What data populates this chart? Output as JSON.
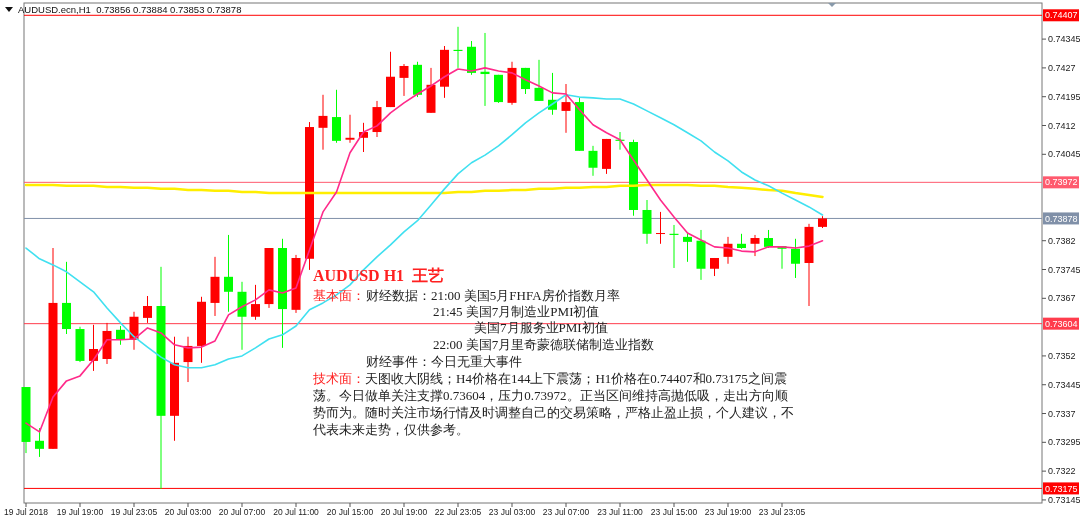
{
  "chart_data": {
    "type": "candlestick",
    "title": "AUDUSD.ecn,H1  0.73856 0.73884 0.73853 0.73878",
    "categories": [
      "19 Jul 2018",
      null,
      null,
      null,
      "19 Jul 19:00",
      null,
      null,
      null,
      "19 Jul 23:05",
      null,
      null,
      null,
      "20 Jul 03:00",
      null,
      null,
      null,
      "20 Jul 07:00",
      null,
      null,
      null,
      "20 Jul 11:00",
      null,
      null,
      null,
      "20 Jul 15:00",
      null,
      null,
      null,
      "20 Jul 19:00",
      null,
      null,
      null,
      "22 Jul 23:05",
      null,
      null,
      null,
      "23 Jul 03:00",
      null,
      null,
      null,
      "23 Jul 07:00",
      null,
      null,
      null,
      "23 Jul 11:00",
      null,
      null,
      null,
      "23 Jul 15:00",
      null,
      null,
      null,
      "23 Jul 19:00",
      null,
      null,
      null,
      "23 Jul 23:05",
      null,
      null,
      null
    ],
    "ohlc": [
      [
        0.73439,
        0.73439,
        0.73267,
        0.73296
      ],
      [
        0.73299,
        0.73332,
        0.73257,
        0.73278
      ],
      [
        0.73278,
        0.73801,
        0.73278,
        0.73658
      ],
      [
        0.73658,
        0.73765,
        0.73577,
        0.7359
      ],
      [
        0.7359,
        0.73596,
        0.73504,
        0.73507
      ],
      [
        0.73507,
        0.73601,
        0.73481,
        0.73538
      ],
      [
        0.73512,
        0.73606,
        0.73499,
        0.73585
      ],
      [
        0.73588,
        0.73598,
        0.73549,
        0.73564
      ],
      [
        0.73562,
        0.73635,
        0.73536,
        0.73622
      ],
      [
        0.73619,
        0.73676,
        0.73606,
        0.7365
      ],
      [
        0.7365,
        0.73752,
        0.73174,
        0.73364
      ],
      [
        0.73364,
        0.7357,
        0.73299,
        0.73502
      ],
      [
        0.73504,
        0.7357,
        0.73452,
        0.73546
      ],
      [
        0.73546,
        0.73674,
        0.73502,
        0.73661
      ],
      [
        0.73658,
        0.73778,
        0.73624,
        0.73726
      ],
      [
        0.73726,
        0.73835,
        0.73635,
        0.73687
      ],
      [
        0.73687,
        0.73713,
        0.73536,
        0.73622
      ],
      [
        0.73622,
        0.73705,
        0.73614,
        0.73655
      ],
      [
        0.73655,
        0.73801,
        0.73645,
        0.73801
      ],
      [
        0.73801,
        0.73825,
        0.73541,
        0.73642
      ],
      [
        0.7364,
        0.73783,
        0.73632,
        0.73775
      ],
      [
        0.73773,
        0.74129,
        0.73744,
        0.74116
      ],
      [
        0.74114,
        0.742,
        0.74057,
        0.74145
      ],
      [
        0.74142,
        0.74213,
        0.74075,
        0.7408
      ],
      [
        0.74083,
        0.74148,
        0.74075,
        0.74088
      ],
      [
        0.74088,
        0.74127,
        0.74051,
        0.74103
      ],
      [
        0.74103,
        0.74184,
        0.7409,
        0.74168
      ],
      [
        0.74168,
        0.74312,
        0.74168,
        0.74247
      ],
      [
        0.74244,
        0.7428,
        0.74197,
        0.74275
      ],
      [
        0.74278,
        0.74286,
        0.74194,
        0.742
      ],
      [
        0.74153,
        0.7427,
        0.74153,
        0.74226
      ],
      [
        0.74221,
        0.74327,
        0.74192,
        0.74317
      ],
      [
        0.74317,
        0.74377,
        0.7427,
        0.74314
      ],
      [
        0.74325,
        0.7434,
        0.74252,
        0.74257
      ],
      [
        0.7426,
        0.74361,
        0.74171,
        0.74254
      ],
      [
        0.74252,
        0.74252,
        0.74179,
        0.74181
      ],
      [
        0.74179,
        0.74286,
        0.74174,
        0.7427
      ],
      [
        0.7427,
        0.7427,
        0.74202,
        0.74215
      ],
      [
        0.74218,
        0.74291,
        0.74184,
        0.74184
      ],
      [
        0.74187,
        0.74257,
        0.74148,
        0.74161
      ],
      [
        0.74158,
        0.74228,
        0.74101,
        0.74181
      ],
      [
        0.74181,
        0.74194,
        0.74054,
        0.74054
      ],
      [
        0.74054,
        0.74067,
        0.73989,
        0.7401
      ],
      [
        0.74007,
        0.74085,
        0.73994,
        0.74085
      ],
      [
        0.74083,
        0.74103,
        0.74057,
        0.7408
      ],
      [
        0.74077,
        0.74083,
        0.73885,
        0.739
      ],
      [
        0.739,
        0.73926,
        0.73812,
        0.73838
      ],
      [
        0.73838,
        0.73895,
        0.73812,
        0.7384
      ],
      [
        0.73838,
        0.73861,
        0.73749,
        0.73835
      ],
      [
        0.7383,
        0.7384,
        0.73765,
        0.73817
      ],
      [
        0.7382,
        0.73848,
        0.73718,
        0.73747
      ],
      [
        0.73747,
        0.73775,
        0.73728,
        0.73775
      ],
      [
        0.73778,
        0.7383,
        0.7376,
        0.73812
      ],
      [
        0.73812,
        0.73838,
        0.73799,
        0.73801
      ],
      [
        0.73812,
        0.73835,
        0.7378,
        0.73827
      ],
      [
        0.73827,
        0.73848,
        0.73801,
        0.73804
      ],
      [
        0.73806,
        0.73806,
        0.73747,
        0.73799
      ],
      [
        0.73799,
        0.73825,
        0.73723,
        0.7376
      ],
      [
        0.73762,
        0.73864,
        0.7365,
        0.73856
      ],
      [
        0.73856,
        0.73884,
        0.73853,
        0.73878
      ]
    ],
    "colors": [
      "#00ff00",
      "#00ff00",
      "#ff0000",
      "#00ff00",
      "#00ff00",
      "#ff0000",
      "#ff0000",
      "#00ff00",
      "#ff0000",
      "#ff0000",
      "#00ff00",
      "#ff0000",
      "#ff0000",
      "#ff0000",
      "#ff0000",
      "#00ff00",
      "#00ff00",
      "#ff0000",
      "#ff0000",
      "#00ff00",
      "#ff0000",
      "#ff0000",
      "#ff0000",
      "#00ff00",
      "#ff0000",
      "#ff0000",
      "#ff0000",
      "#ff0000",
      "#ff0000",
      "#00ff00",
      "#ff0000",
      "#ff0000",
      "#00ff00",
      "#00ff00",
      "#00ff00",
      "#00ff00",
      "#ff0000",
      "#00ff00",
      "#00ff00",
      "#00ff00",
      "#ff0000",
      "#00ff00",
      "#00ff00",
      "#ff0000",
      "#00ff00",
      "#00ff00",
      "#00ff00",
      "#ff0000",
      "#00ff00",
      "#00ff00",
      "#00ff00",
      "#ff0000",
      "#ff0000",
      "#00ff00",
      "#ff0000",
      "#00ff00",
      "#00ff00",
      "#00ff00",
      "#ff0000",
      "#ff0000"
    ],
    "series": [
      {
        "type": "line",
        "color": "#ffee00",
        "values": [
          0.73965,
          0.73965,
          0.73965,
          0.73963,
          0.73963,
          0.73963,
          0.7396,
          0.7396,
          0.73958,
          0.73958,
          0.73955,
          0.73955,
          0.73952,
          0.73952,
          0.7395,
          0.7395,
          0.73947,
          0.73947,
          0.73944,
          0.73944,
          0.73944,
          0.73944,
          0.73944,
          0.73944,
          0.73944,
          0.73944,
          0.73944,
          0.73944,
          0.73944,
          0.73944,
          0.73944,
          0.73944,
          0.73947,
          0.73947,
          0.7395,
          0.7395,
          0.73952,
          0.73952,
          0.73955,
          0.73955,
          0.73958,
          0.73958,
          0.7396,
          0.7396,
          0.73963,
          0.73963,
          0.73965,
          0.73965,
          0.73965,
          0.73965,
          0.73963,
          0.73963,
          0.7396,
          0.73958,
          0.73955,
          0.73952,
          0.7395,
          0.73944,
          0.73939,
          0.73934
        ]
      },
      {
        "type": "line",
        "color": "#40e0f0",
        "values": [
          0.73801,
          0.73773,
          0.73757,
          0.73739,
          0.73713,
          0.73687,
          0.73645,
          0.73606,
          0.7357,
          0.73543,
          0.73517,
          0.73497,
          0.73489,
          0.73489,
          0.73497,
          0.73512,
          0.7352,
          0.73541,
          0.73564,
          0.73575,
          0.73598,
          0.7364,
          0.73658,
          0.73679,
          0.73705,
          0.73744,
          0.73778,
          0.73809,
          0.73843,
          0.73872,
          0.73913,
          0.73955,
          0.73994,
          0.74023,
          0.74043,
          0.74067,
          0.74096,
          0.74127,
          0.74153,
          0.74176,
          0.742,
          0.74194,
          0.74192,
          0.74189,
          0.74189,
          0.74176,
          0.74158,
          0.7414,
          0.74122,
          0.74101,
          0.7408,
          0.74051,
          0.74028,
          0.73999,
          0.73978,
          0.73963,
          0.73944,
          0.73926,
          0.73908,
          0.73887
        ]
      },
      {
        "type": "line",
        "color": "#ff2a8a",
        "values": [
          0.73345,
          0.73322,
          0.73413,
          0.73455,
          0.73468,
          0.7351,
          0.73562,
          0.73562,
          0.73564,
          0.73593,
          0.7358,
          0.73549,
          0.73541,
          0.73543,
          0.73559,
          0.73627,
          0.73648,
          0.73666,
          0.73692,
          0.73684,
          0.73697,
          0.73796,
          0.73895,
          0.73947,
          0.74049,
          0.74103,
          0.74119,
          0.74153,
          0.74179,
          0.74202,
          0.74223,
          0.74247,
          0.74267,
          0.74262,
          0.7427,
          0.74262,
          0.74257,
          0.74239,
          0.74223,
          0.74205,
          0.74202,
          0.74161,
          0.74122,
          0.74101,
          0.74083,
          0.7403,
          0.73978,
          0.73926,
          0.73882,
          0.7384,
          0.73822,
          0.73804,
          0.73801,
          0.73793,
          0.73791,
          0.73804,
          0.73804,
          0.73801,
          0.73806,
          0.7382
        ]
      }
    ],
    "ylim": [
      0.73137,
      0.74439
    ],
    "yticks": [
      0.74345,
      0.7427,
      0.74195,
      0.7412,
      0.74045,
      0.7382,
      0.73745,
      0.7367,
      0.7352,
      0.73445,
      0.7337,
      0.73295,
      0.7322,
      0.73145
    ],
    "ref_lines": [
      {
        "axis": "y",
        "value": 0.74407,
        "label": "0.74407",
        "color": "#ff0000"
      },
      {
        "axis": "y",
        "value": 0.73972,
        "label": "0.73972",
        "color": "#ff5a6e"
      },
      {
        "axis": "y",
        "value": 0.73878,
        "label": "0.73878",
        "color": "#8090a8"
      },
      {
        "axis": "y",
        "value": 0.73604,
        "label": "0.73604",
        "color": "#ff3c4c"
      },
      {
        "axis": "y",
        "value": 0.73175,
        "label": "0.73175",
        "color": "#ff0000"
      }
    ],
    "annotations": [
      "AUDUSD H1  王艺",
      "基本面：",
      "财经数据：21:00 美国5月FHFA房价指数月率",
      "21:45 美国7月制造业PMI初值",
      "美国7月服务业PMI初值",
      "22:00 美国7月里奇蒙德联储制造业指数",
      "财经事件：今日无重大事件",
      "技术面：",
      "天图收大阴线；H4价格在144上下震荡；H1价格在0.74407和0.73175之间震荡。今日做单关注支撑0.73604，压力0.73972。正当区间维持高抛低吸，走出方向顺势而为。随时关注市场行情及时调整自己的交易策略，严格止盈止损，个人建议，不代表未来走势，仅供参考。"
    ]
  }
}
